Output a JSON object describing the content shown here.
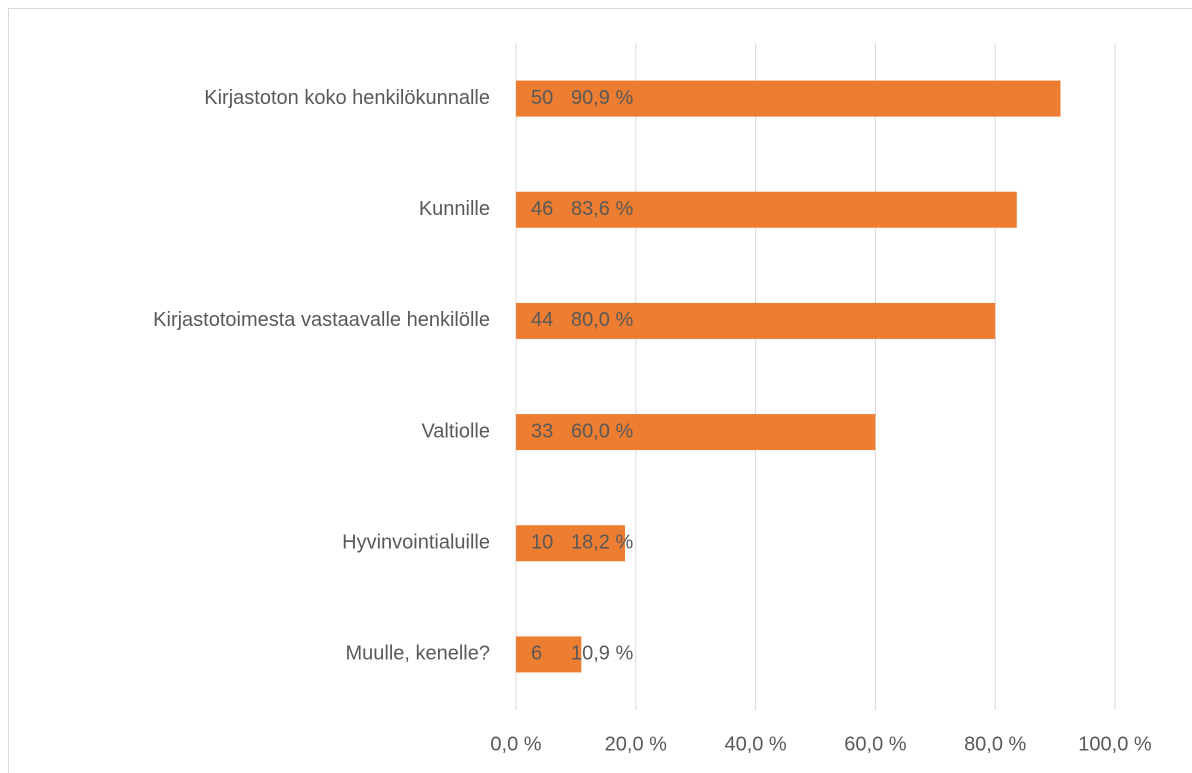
{
  "chart_data": {
    "type": "bar",
    "orientation": "horizontal",
    "categories": [
      "Kirjastoton koko henkilökunnalle",
      "Kunnille",
      "Kirjastotoimesta vastaavalle henkilölle",
      "Valtiolle",
      "Hyvinvointialuille",
      "Muulle, kenelle?"
    ],
    "values": [
      90.9,
      83.6,
      80.0,
      60.0,
      18.2,
      10.9
    ],
    "value_labels": [
      "90,9 %",
      "83,6 %",
      "80,0 %",
      "60,0 %",
      "18,2 %",
      "10,9 %"
    ],
    "counts": [
      50,
      46,
      44,
      33,
      10,
      6
    ],
    "color": "#ED7D31",
    "xlim": [
      0,
      100
    ],
    "xticks": [
      {
        "value": 0,
        "label": "0,0 %"
      },
      {
        "value": 20,
        "label": "20,0 %"
      },
      {
        "value": 40,
        "label": "40,0 %"
      },
      {
        "value": 60,
        "label": "60,0 %"
      },
      {
        "value": 80,
        "label": "80,0 %"
      },
      {
        "value": 100,
        "label": "100,0 %"
      }
    ],
    "grid": true
  }
}
